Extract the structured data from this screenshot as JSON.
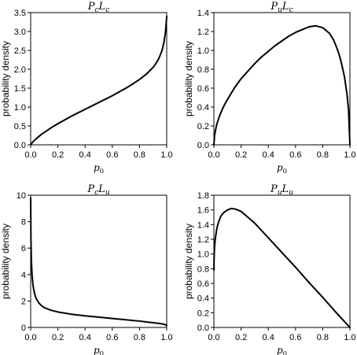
{
  "chart_data": [
    {
      "type": "line",
      "title": {
        "p1": "P",
        "s1": "c",
        "p2": "L",
        "s2": "c"
      },
      "xlabel": {
        "main": "p",
        "sub": "0"
      },
      "ylabel": "probability density",
      "xlim": [
        0,
        1
      ],
      "ylim": [
        0,
        3.5
      ],
      "xticks": [
        "0.0",
        "0.2",
        "0.4",
        "0.6",
        "0.8",
        "1.0"
      ],
      "yticks": [
        "0.0",
        "0.5",
        "1.0",
        "1.5",
        "2.0",
        "2.5",
        "3.0",
        "3.5"
      ],
      "grid": false,
      "series": [
        {
          "x": [
            0,
            0.01,
            0.02,
            0.04,
            0.06,
            0.08,
            0.1,
            0.15,
            0.2,
            0.25,
            0.3,
            0.35,
            0.4,
            0.45,
            0.5,
            0.55,
            0.6,
            0.65,
            0.7,
            0.75,
            0.8,
            0.85,
            0.9,
            0.92,
            0.94,
            0.96,
            0.97,
            0.98,
            0.99,
            0.995,
            1.0
          ],
          "y": [
            0.0,
            0.05,
            0.09,
            0.16,
            0.22,
            0.28,
            0.33,
            0.45,
            0.56,
            0.66,
            0.76,
            0.85,
            0.94,
            1.03,
            1.12,
            1.21,
            1.3,
            1.4,
            1.5,
            1.61,
            1.73,
            1.87,
            2.05,
            2.15,
            2.27,
            2.44,
            2.56,
            2.72,
            2.95,
            3.15,
            3.4
          ]
        }
      ]
    },
    {
      "type": "line",
      "title": {
        "p1": "P",
        "s1": "u",
        "p2": "L",
        "s2": "c"
      },
      "xlabel": {
        "main": "p",
        "sub": "0"
      },
      "ylabel": "probability density",
      "xlim": [
        0,
        1
      ],
      "ylim": [
        0,
        1.4
      ],
      "xticks": [
        "0.0",
        "0.2",
        "0.4",
        "0.6",
        "0.8",
        "1.0"
      ],
      "yticks": [
        "0.0",
        "0.2",
        "0.4",
        "0.6",
        "0.8",
        "1.0",
        "1.2",
        "1.4"
      ],
      "grid": false,
      "series": [
        {
          "x": [
            0,
            0.005,
            0.01,
            0.02,
            0.04,
            0.06,
            0.08,
            0.1,
            0.15,
            0.2,
            0.25,
            0.3,
            0.35,
            0.4,
            0.45,
            0.5,
            0.55,
            0.6,
            0.65,
            0.7,
            0.75,
            0.8,
            0.85,
            0.88,
            0.9,
            0.92,
            0.94,
            0.96,
            0.98,
            0.99,
            1.0
          ],
          "y": [
            0.0,
            0.1,
            0.14,
            0.21,
            0.3,
            0.37,
            0.43,
            0.48,
            0.6,
            0.7,
            0.78,
            0.86,
            0.93,
            0.99,
            1.05,
            1.1,
            1.15,
            1.19,
            1.22,
            1.25,
            1.26,
            1.24,
            1.18,
            1.11,
            1.04,
            0.96,
            0.85,
            0.72,
            0.52,
            0.37,
            0.0
          ]
        }
      ]
    },
    {
      "type": "line",
      "title": {
        "p1": "P",
        "s1": "c",
        "p2": "L",
        "s2": "u"
      },
      "xlabel": {
        "main": "p",
        "sub": "0"
      },
      "ylabel": "probability density",
      "xlim": [
        0,
        1
      ],
      "ylim": [
        0,
        10
      ],
      "xticks": [
        "0.0",
        "0.2",
        "0.4",
        "0.6",
        "0.8",
        "1.0"
      ],
      "yticks": [
        "0",
        "2",
        "4",
        "6",
        "8",
        "10"
      ],
      "grid": false,
      "series": [
        {
          "x": [
            0,
            0.002,
            0.005,
            0.01,
            0.015,
            0.02,
            0.03,
            0.04,
            0.06,
            0.08,
            0.1,
            0.15,
            0.2,
            0.3,
            0.4,
            0.5,
            0.6,
            0.7,
            0.8,
            0.9,
            0.95,
            0.98,
            1.0
          ],
          "y": [
            9.8,
            6.8,
            5.1,
            4.0,
            3.4,
            3.0,
            2.5,
            2.2,
            1.85,
            1.65,
            1.5,
            1.3,
            1.17,
            1.0,
            0.88,
            0.78,
            0.68,
            0.58,
            0.48,
            0.36,
            0.3,
            0.24,
            0.15
          ]
        }
      ]
    },
    {
      "type": "line",
      "title": {
        "p1": "P",
        "s1": "u",
        "p2": "L",
        "s2": "u"
      },
      "xlabel": {
        "main": "p",
        "sub": "0"
      },
      "ylabel": "probability density",
      "xlim": [
        0,
        1
      ],
      "ylim": [
        0,
        1.8
      ],
      "xticks": [
        "0.0",
        "0.2",
        "0.4",
        "0.6",
        "0.8",
        "1.0"
      ],
      "yticks": [
        "0.0",
        "0.2",
        "0.4",
        "0.6",
        "0.8",
        "1.0",
        "1.2",
        "1.4",
        "1.6",
        "1.8"
      ],
      "grid": false,
      "series": [
        {
          "x": [
            0,
            0.002,
            0.005,
            0.01,
            0.02,
            0.03,
            0.05,
            0.07,
            0.1,
            0.13,
            0.16,
            0.2,
            0.25,
            0.3,
            0.4,
            0.5,
            0.6,
            0.7,
            0.8,
            0.9,
            0.95,
            1.0
          ],
          "y": [
            0.78,
            0.98,
            1.1,
            1.2,
            1.33,
            1.41,
            1.51,
            1.56,
            1.6,
            1.62,
            1.61,
            1.58,
            1.5,
            1.42,
            1.22,
            1.02,
            0.82,
            0.61,
            0.41,
            0.2,
            0.1,
            0.0
          ]
        }
      ]
    }
  ]
}
